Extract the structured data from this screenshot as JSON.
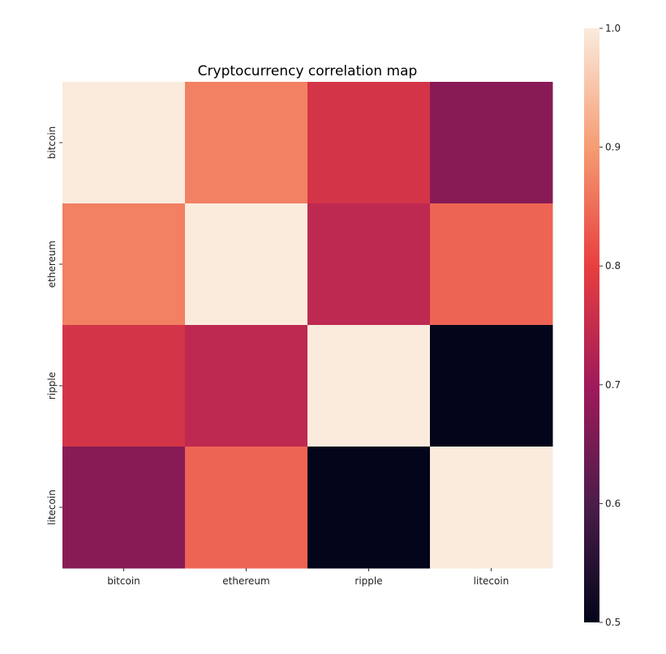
{
  "chart_data": {
    "type": "heatmap",
    "title": "Cryptocurrency correlation map",
    "xlabel": "",
    "ylabel": "",
    "x_categories": [
      "bitcoin",
      "ethereum",
      "ripple",
      "litecoin"
    ],
    "y_categories": [
      "bitcoin",
      "ethereum",
      "ripple",
      "litecoin"
    ],
    "values": [
      [
        1.0,
        0.87,
        0.77,
        0.67
      ],
      [
        0.87,
        1.0,
        0.74,
        0.84
      ],
      [
        0.77,
        0.74,
        1.0,
        0.5
      ],
      [
        0.67,
        0.84,
        0.5,
        1.0
      ]
    ],
    "colorbar": {
      "range": [
        0.5,
        1.0
      ],
      "ticks": [
        "0.5",
        "0.6",
        "0.7",
        "0.8",
        "0.9",
        "1.0"
      ],
      "colormap": "rocket"
    },
    "grid": false,
    "legend": "colorbar-right"
  }
}
